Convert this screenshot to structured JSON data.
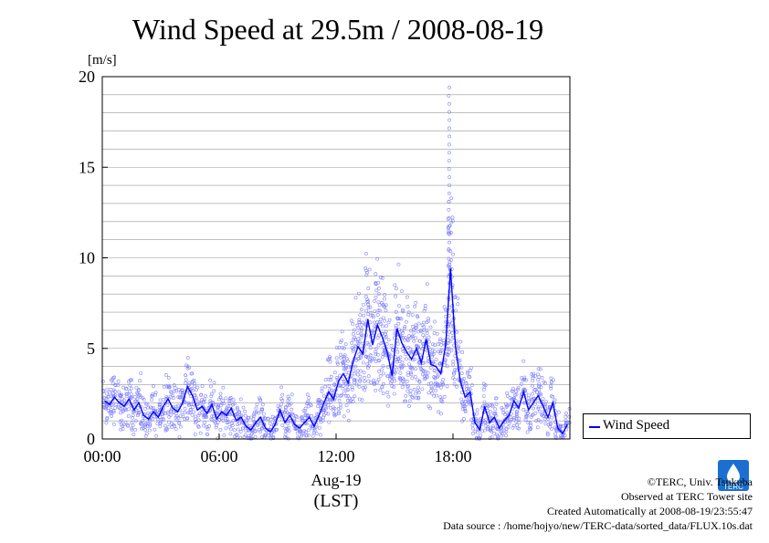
{
  "title": "Wind Speed at 29.5m / 2008-08-19",
  "chart_data": {
    "type": "scatter",
    "ylabel": "[m/s]",
    "xlabel": "Aug-19",
    "xlabel2": "(LST)",
    "ylim": [
      0,
      20
    ],
    "xlim": [
      "00:00",
      "24:00"
    ],
    "y_ticks": [
      0,
      5,
      10,
      15,
      20
    ],
    "x_ticks": [
      "00:00",
      "06:00",
      "12:00",
      "18:00"
    ],
    "grid": true,
    "legend_position": "right",
    "series": [
      {
        "name": "Wind Speed",
        "color": "#0000ff",
        "scatter_color": "#8080ff",
        "x_hours": [
          0,
          0.25,
          0.5,
          0.75,
          1,
          1.25,
          1.5,
          1.75,
          2,
          2.25,
          2.5,
          2.75,
          3,
          3.25,
          3.5,
          3.75,
          4,
          4.25,
          4.5,
          4.75,
          5,
          5.25,
          5.5,
          5.75,
          6,
          6.25,
          6.5,
          6.75,
          7,
          7.25,
          7.5,
          7.75,
          8,
          8.25,
          8.5,
          8.75,
          9,
          9.25,
          9.5,
          9.75,
          10,
          10.25,
          10.5,
          10.75,
          11,
          11.25,
          11.5,
          11.75,
          12,
          12.25,
          12.5,
          12.75,
          13,
          13.25,
          13.5,
          13.75,
          14,
          14.25,
          14.5,
          14.75,
          15,
          15.25,
          15.5,
          15.75,
          16,
          16.25,
          16.5,
          16.75,
          17,
          17.25,
          17.5,
          17.75,
          18,
          18.25,
          18.5,
          18.75,
          19,
          19.25,
          19.5,
          19.75,
          20,
          20.25,
          20.5,
          20.75,
          21,
          21.25,
          21.5,
          21.75,
          22,
          22.25,
          22.5,
          22.75,
          23,
          23.25,
          23.5,
          23.75
        ],
        "mean_values": [
          2.1,
          1.9,
          2.3,
          2.0,
          1.8,
          2.2,
          1.6,
          2.0,
          1.3,
          1.1,
          1.5,
          1.2,
          1.8,
          2.2,
          1.7,
          1.5,
          2.0,
          2.9,
          2.4,
          1.6,
          1.8,
          1.4,
          1.9,
          1.1,
          1.5,
          1.3,
          1.7,
          1.0,
          1.2,
          0.7,
          0.5,
          0.9,
          1.2,
          0.6,
          0.4,
          0.8,
          1.6,
          0.9,
          1.3,
          0.8,
          0.6,
          0.9,
          1.2,
          0.7,
          1.3,
          2.0,
          2.6,
          2.2,
          3.2,
          3.6,
          3.1,
          4.3,
          5.1,
          4.7,
          6.6,
          5.2,
          6.3,
          5.6,
          4.8,
          3.5,
          6.1,
          5.3,
          4.8,
          4.4,
          5.0,
          4.2,
          5.5,
          4.1,
          4.0,
          3.6,
          5.2,
          9.4,
          5.1,
          3.2,
          2.3,
          2.6,
          0.9,
          0.5,
          1.8,
          0.9,
          1.2,
          0.6,
          1.0,
          1.3,
          2.1,
          1.7,
          2.6,
          1.6,
          2.0,
          2.4,
          1.8,
          1.2,
          2.0,
          0.6,
          0.3,
          0.8
        ],
        "peak_value": 19.8,
        "peak_x_hours": 17.8
      }
    ]
  },
  "legend": {
    "label": "Wind Speed"
  },
  "credits": [
    "©TERC, Univ. Tsukuba",
    "Observed at TERC Tower site",
    "Created Automatically at 2008-08-19/23:55:47",
    "Data source : /home/hojyo/new/TERC-data/sorted_data/FLUX.10s.dat"
  ],
  "logo_text": "TERC",
  "colors": {
    "series_line": "#0000ff",
    "series_points": "#8080ff",
    "grid": "#999999",
    "logo": "#1a6fd1"
  }
}
